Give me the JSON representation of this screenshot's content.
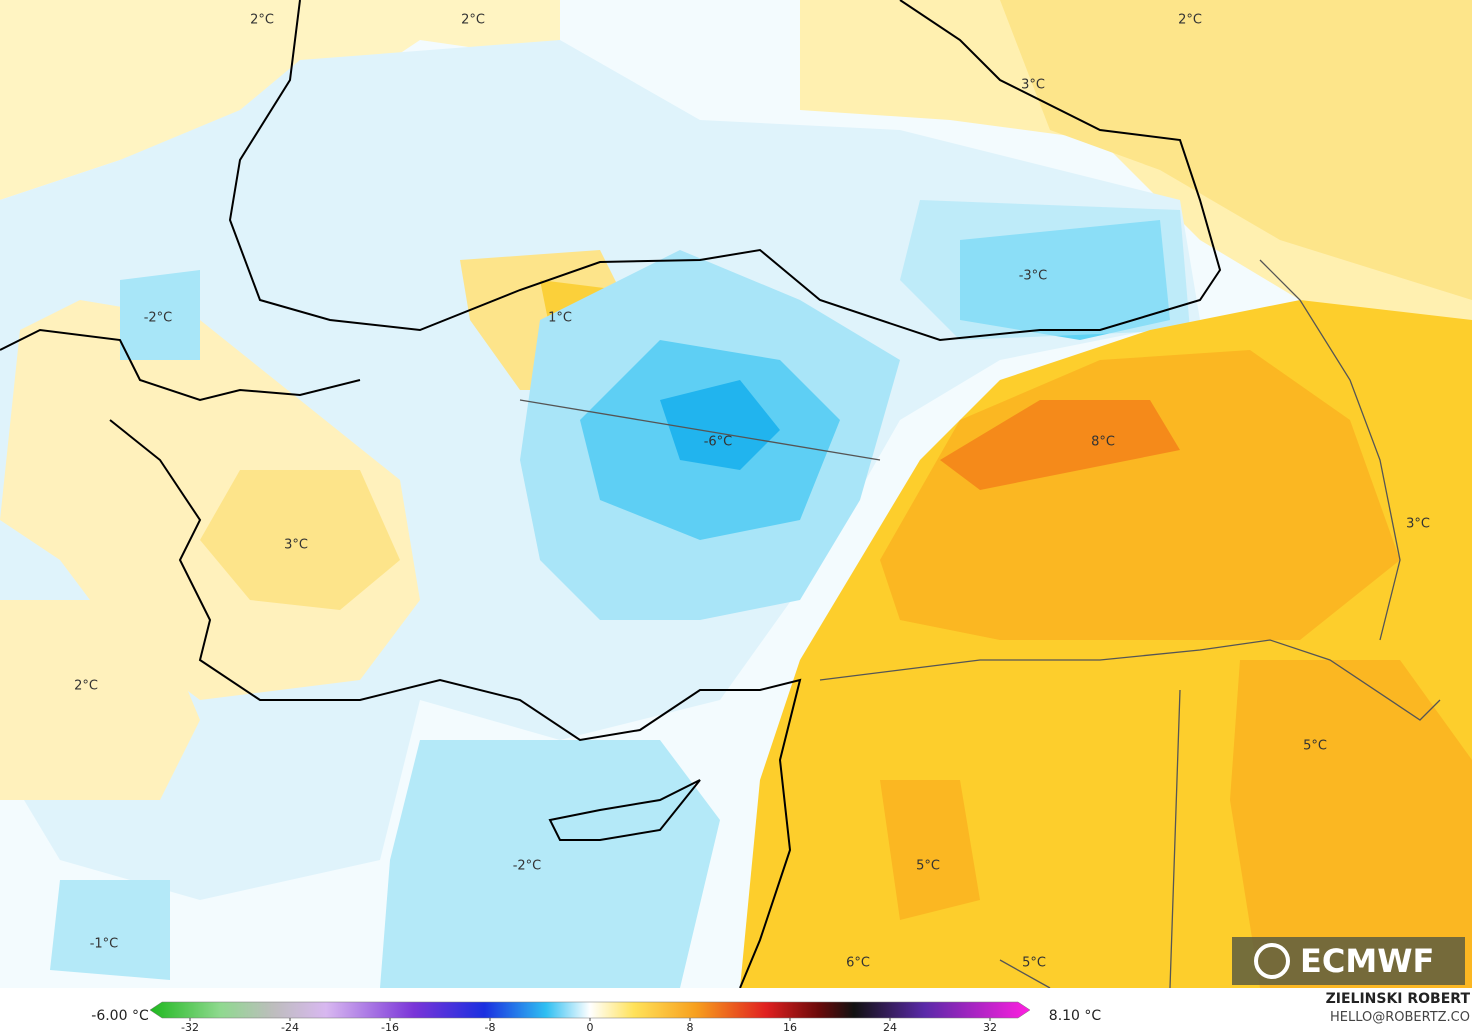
{
  "map": {
    "labels": [
      "2°C",
      "2°C",
      "2°C",
      "3°C",
      "-3°C",
      "-2°C",
      "1°C",
      "-6°C",
      "8°C",
      "3°C",
      "3°C",
      "2°C",
      "5°C",
      "5°C",
      "-2°C",
      "-1°C",
      "6°C",
      "5°C"
    ],
    "logo": "ECMWF"
  },
  "colorbar": {
    "min_label": "-6.00 °C",
    "max_label": "8.10 °C",
    "ticks": [
      -32,
      -24,
      -16,
      -8,
      0,
      8,
      16,
      24,
      32
    ]
  },
  "credit": {
    "author": "ZIELINSKI ROBERT",
    "contact": "HELLO@ROBERTZ.CO"
  }
}
